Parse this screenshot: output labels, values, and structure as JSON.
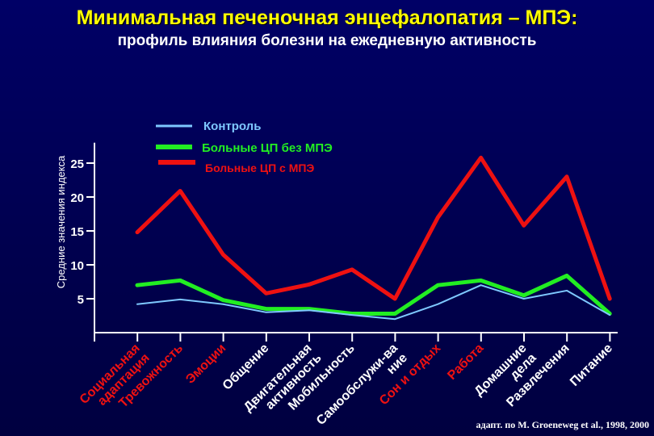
{
  "header": {
    "title": "Минимальная печеночная энцефалопатия – МПЭ:",
    "subtitle": "профиль влияния болезни на ежедневную активность"
  },
  "source": "адапт. по M. Groeneweg et al., 1998, 2000",
  "colors": {
    "control": "#7ec8ff",
    "cirrhosis_no_mhe": "#22ee22",
    "cirrhosis_mhe": "#ee1111",
    "category_red": "#ee1111",
    "category_white": "#ffffff",
    "axis": "#ffffff"
  },
  "chart_data": {
    "type": "line",
    "title": "",
    "xlabel": "",
    "ylabel": "Средние значения индекса",
    "yticks": [
      5,
      10,
      15,
      20,
      25
    ],
    "ylim": [
      0,
      28
    ],
    "grid": false,
    "legend_position": "top-left",
    "categories": [
      {
        "label": "Социальная адаптация",
        "highlight": true
      },
      {
        "label": "Тревожность",
        "highlight": true
      },
      {
        "label": "Эмоции",
        "highlight": true
      },
      {
        "label": "Общение",
        "highlight": false
      },
      {
        "label": "Двигательная активность",
        "highlight": false
      },
      {
        "label": "Мобильность",
        "highlight": false
      },
      {
        "label": "Самообслуживание",
        "highlight": false
      },
      {
        "label": "Сон и отдых",
        "highlight": true
      },
      {
        "label": "Работа",
        "highlight": true
      },
      {
        "label": "Домашние дела",
        "highlight": false
      },
      {
        "label": "Развлечения",
        "highlight": false
      },
      {
        "label": "Питание",
        "highlight": false
      }
    ],
    "category_lines": [
      [
        "Социальная",
        "адаптация"
      ],
      [
        "Тревожность"
      ],
      [
        "Эмоции"
      ],
      [
        "Общение"
      ],
      [
        "Двигательная",
        "активность"
      ],
      [
        "Мобильность"
      ],
      [
        "Самообслужи-ва",
        "ние"
      ],
      [
        "Сон и отдых"
      ],
      [
        "Работа"
      ],
      [
        "Домашние",
        "дела"
      ],
      [
        "Развлечения"
      ],
      [
        "Питание"
      ]
    ],
    "series": [
      {
        "name": "Контроль",
        "key": "control",
        "values": [
          4.2,
          4.9,
          4.2,
          3.0,
          3.3,
          2.6,
          2.0,
          4.2,
          7.0,
          5.0,
          6.2,
          2.6
        ]
      },
      {
        "name": "Больные ЦП без МПЭ",
        "key": "cirrhosis_no_mhe",
        "values": [
          7.0,
          7.7,
          4.8,
          3.5,
          3.5,
          2.8,
          2.8,
          7.0,
          7.7,
          5.5,
          8.4,
          2.8
        ]
      },
      {
        "name": "Больные ЦП с МПЭ",
        "key": "cirrhosis_mhe",
        "values": [
          14.8,
          20.9,
          11.5,
          5.8,
          7.1,
          9.3,
          5.0,
          17.0,
          25.8,
          15.8,
          23.0,
          5.0
        ]
      }
    ]
  }
}
